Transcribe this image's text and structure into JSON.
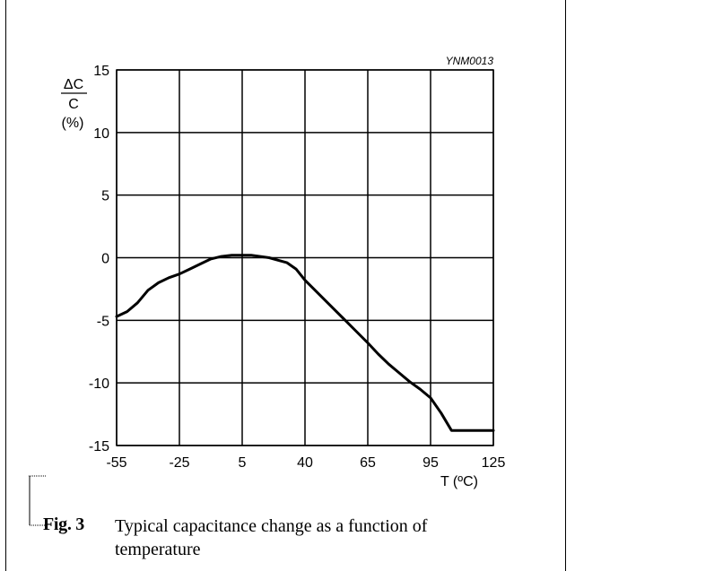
{
  "figure": {
    "code": "YNM0013",
    "number": "Fig. 3",
    "caption": "Typical capacitance change as a function of temperature"
  },
  "chart_data": {
    "type": "line",
    "title": "",
    "ylabel": {
      "numerator": "ΔC",
      "denominator": "C",
      "unit": "(%)"
    },
    "xlabel": "T (ºC)",
    "xlim": [
      -55,
      125
    ],
    "ylim": [
      -15,
      15
    ],
    "x_ticks": [
      "-55",
      "-25",
      "5",
      "40",
      "65",
      "95",
      "125"
    ],
    "y_ticks": [
      "15",
      "10",
      "5",
      "0",
      "-5",
      "-10",
      "-15"
    ],
    "grid": true,
    "series": [
      {
        "x": [
          -55,
          -50,
          -45,
          -40,
          -35,
          -30,
          -25,
          -20,
          -15,
          -10,
          -5,
          0,
          5,
          10,
          15,
          20,
          25,
          30,
          35,
          40,
          45,
          50,
          55,
          60,
          65,
          70,
          75,
          80,
          85,
          90,
          95,
          100,
          105,
          110,
          115,
          120,
          125
        ],
        "y": [
          -4.7,
          -4.3,
          -3.6,
          -2.6,
          -2.0,
          -1.6,
          -1.3,
          -0.9,
          -0.5,
          -0.1,
          0.1,
          0.2,
          0.2,
          0.2,
          0.1,
          0.0,
          -0.2,
          -0.4,
          -0.9,
          -1.8,
          -2.8,
          -3.8,
          -4.8,
          -5.8,
          -6.8,
          -7.7,
          -8.5,
          -9.2,
          -9.9,
          -10.5,
          -11.2,
          -12.4,
          -13.8,
          -13.8,
          -13.8,
          -13.8,
          -13.8
        ]
      }
    ]
  }
}
